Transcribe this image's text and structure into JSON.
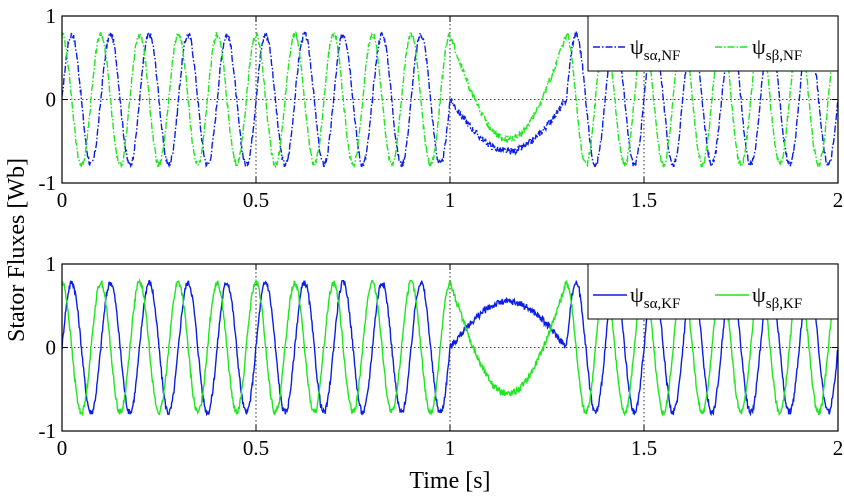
{
  "chart_data": [
    {
      "type": "line",
      "panel": "top",
      "title": "",
      "xlabel": "",
      "ylabel": "Stator Fluxes [Wb]",
      "xlim": [
        0,
        2
      ],
      "ylim": [
        -1,
        1
      ],
      "xticks": [
        0,
        0.5,
        1,
        1.5,
        2
      ],
      "xtick_labels": [
        "0",
        "0.5",
        "1",
        "1.5",
        "2"
      ],
      "yticks": [
        -1,
        0,
        1
      ],
      "ytick_labels": [
        "-1",
        "0",
        "1"
      ],
      "grid": true,
      "legend_position": "top-right",
      "series": [
        {
          "name": "ψsα,NF",
          "symbol": "ψ",
          "sub": "sα,NF",
          "color": "#0a1ee6",
          "style": "dash-dot",
          "amplitude": 0.78,
          "frequency_hz": 10,
          "phase": "sine",
          "dip_interval": [
            1.0,
            1.3
          ],
          "dip_level": -0.62
        },
        {
          "name": "ψsβ,NF",
          "symbol": "ψ",
          "sub": "sβ,NF",
          "color": "#1fe61f",
          "style": "dash-dot",
          "amplitude": 0.78,
          "frequency_hz": 10,
          "phase": "cosine",
          "dip_interval": [
            1.0,
            1.3
          ],
          "dip_level": -0.48
        }
      ]
    },
    {
      "type": "line",
      "panel": "bottom",
      "title": "",
      "xlabel": "Time [s]",
      "ylabel": "Stator Fluxes [Wb]",
      "xlim": [
        0,
        2
      ],
      "ylim": [
        -1,
        1
      ],
      "xticks": [
        0,
        0.5,
        1,
        1.5,
        2
      ],
      "xtick_labels": [
        "0",
        "0.5",
        "1",
        "1.5",
        "2"
      ],
      "yticks": [
        -1,
        0,
        1
      ],
      "ytick_labels": [
        "-1",
        "0",
        "1"
      ],
      "grid": true,
      "legend_position": "top-right",
      "series": [
        {
          "name": "ψsα,KF",
          "symbol": "ψ",
          "sub": "sα,KF",
          "color": "#0a1ee6",
          "style": "solid",
          "amplitude": 0.78,
          "frequency_hz": 10,
          "phase": "sine",
          "dip_interval": [
            1.0,
            1.3
          ],
          "dip_level": 0.55
        },
        {
          "name": "ψsβ,KF",
          "symbol": "ψ",
          "sub": "sβ,KF",
          "color": "#1fe61f",
          "style": "solid",
          "amplitude": 0.78,
          "frequency_hz": 10,
          "phase": "cosine",
          "dip_interval": [
            1.0,
            1.3
          ],
          "dip_level": -0.55
        }
      ]
    }
  ]
}
